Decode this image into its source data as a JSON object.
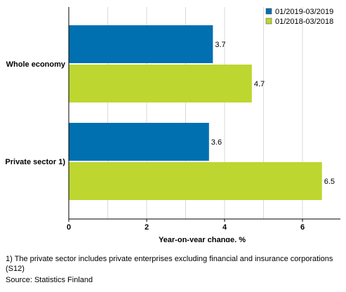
{
  "chart_data": {
    "type": "bar",
    "orientation": "horizontal",
    "categories": [
      "Whole economy",
      "Private sector 1)"
    ],
    "series": [
      {
        "name": "01/2019-03/2019",
        "values": [
          3.7,
          3.6
        ],
        "color": "#0070b0"
      },
      {
        "name": "01/2018-03/2018",
        "values": [
          4.7,
          6.5
        ],
        "color": "#bed630"
      }
    ],
    "xlabel": "Year-on-year change, %",
    "xlim": [
      0,
      7
    ],
    "xticks": [
      0,
      2,
      4,
      6
    ],
    "grid": true,
    "legend": "top-right",
    "data_labels": true
  },
  "footnote": "1) The private sector includes private enterprises excluding financial and insurance corporations (S12)",
  "source": "Source: Statistics Finland"
}
